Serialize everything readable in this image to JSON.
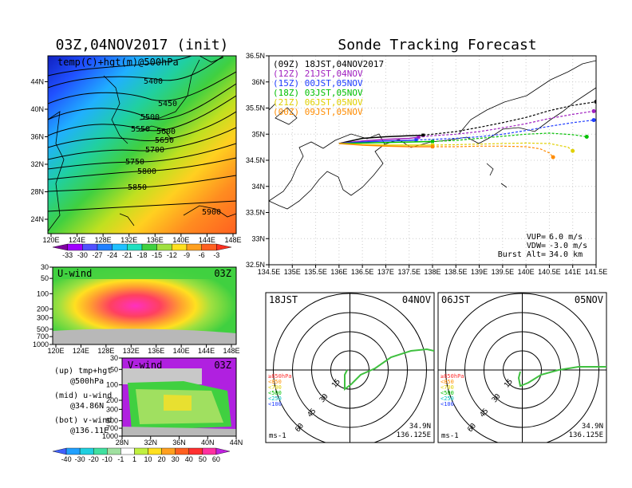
{
  "left_title": "03Z,04NOV2017 (init)",
  "right_title": "Sonde Tracking Forecast",
  "map_panel": {
    "label": "temp(C)+hgt(m)@500hPa",
    "x_ticks": [
      "120E",
      "124E",
      "128E",
      "132E",
      "136E",
      "140E",
      "144E",
      "148E"
    ],
    "y_ticks": [
      "24N",
      "28N",
      "32N",
      "36N",
      "40N",
      "44N"
    ],
    "contours": [
      "5400",
      "5450",
      "5500",
      "5550",
      "5600",
      "5650",
      "5700",
      "5750",
      "5800",
      "5850",
      "5900"
    ]
  },
  "temp_colorbar": [
    "-33",
    "-30",
    "-27",
    "-24",
    "-21",
    "-18",
    "-15",
    "-12",
    "-9",
    "-6",
    "-3"
  ],
  "u_panel": {
    "label": "U-wind",
    "time": "03Z",
    "y_ticks": [
      "30",
      "50",
      "100",
      "200",
      "300",
      "500",
      "700",
      "1000"
    ],
    "x_ticks": [
      "120E",
      "124E",
      "128E",
      "132E",
      "136E",
      "140E",
      "144E",
      "148E"
    ]
  },
  "v_panel": {
    "label": "V-wind",
    "time": "03Z",
    "y_ticks": [
      "30",
      "50",
      "100",
      "200",
      "300",
      "500",
      "700",
      "1000"
    ],
    "x_ticks": [
      "28N",
      "32N",
      "36N",
      "40N",
      "44N"
    ]
  },
  "descriptions": [
    {
      "a": "(up) tmp+hgt",
      "b": "@500hPa"
    },
    {
      "a": "(mid) u-wind",
      "b": "@34.86N"
    },
    {
      "a": "(bot) v-wind",
      "b": "@136.11E"
    }
  ],
  "wind_colorbar": [
    "-40",
    "-30",
    "-20",
    "-10",
    "-1",
    "1",
    "10",
    "20",
    "30",
    "40",
    "50",
    "60"
  ],
  "track_panel": {
    "x_ticks": [
      "134.5E",
      "135E",
      "135.5E",
      "136E",
      "136.5E",
      "137E",
      "137.5E",
      "138E",
      "138.5E",
      "139E",
      "139.5E",
      "140E",
      "140.5E",
      "141E",
      "141.5E"
    ],
    "y_ticks": [
      "32.5N",
      "33N",
      "33.5N",
      "34N",
      "34.5N",
      "35N",
      "35.5N",
      "36N",
      "36.5N"
    ],
    "legend": [
      {
        "text": "(09Z)  18JST,04NOV2017",
        "color": "#000000"
      },
      {
        "text": "(12Z)  21JST,04NOV",
        "color": "#a020c0"
      },
      {
        "text": "(15Z)  00JST,05NOV",
        "color": "#1e3cff"
      },
      {
        "text": "(18Z)  03JST,05NOV",
        "color": "#00c000"
      },
      {
        "text": "(21Z)  06JST,05NOV",
        "color": "#e0d000"
      },
      {
        "text": "(00Z)  09JST,05NOV",
        "color": "#ff8c00"
      }
    ],
    "params": [
      {
        "k": "VUP=",
        "v": "6.0 m/s"
      },
      {
        "k": "VDW=",
        "v": "-3.0 m/s"
      },
      {
        "k": "Burst Alt=",
        "v": "34.0 km"
      }
    ]
  },
  "hodographs": [
    {
      "time": "18JST",
      "date": "04NOV",
      "lat": "34.9N",
      "lon": "136.125E",
      "unit": "ms-1",
      "rings": [
        "15",
        "30",
        "45",
        "60"
      ],
      "levels": [
        {
          "t": "≥850hPa",
          "c": "#ff3030"
        },
        {
          "t": "<850",
          "c": "#ff8c00"
        },
        {
          "t": "<700",
          "c": "#e0d000"
        },
        {
          "t": "<500",
          "c": "#00c000"
        },
        {
          "t": "<250",
          "c": "#00c0c0"
        },
        {
          "t": "<100",
          "c": "#1e3cff"
        }
      ]
    },
    {
      "time": "06JST",
      "date": "05NOV",
      "lat": "34.9N",
      "lon": "136.125E",
      "unit": "ms-1",
      "rings": [
        "15",
        "30",
        "45",
        "60"
      ],
      "levels": [
        {
          "t": "≥850hPa",
          "c": "#ff3030"
        },
        {
          "t": "<850",
          "c": "#ff8c00"
        },
        {
          "t": "<700",
          "c": "#e0d000"
        },
        {
          "t": "<500",
          "c": "#00c000"
        },
        {
          "t": "<250",
          "c": "#00c0c0"
        },
        {
          "t": "<100",
          "c": "#1e3cff"
        }
      ]
    }
  ],
  "chart_data": {
    "type": "line",
    "title": "Sonde Tracking Forecast",
    "xlabel": "",
    "ylabel": "",
    "xlim": [
      134.5,
      141.5
    ],
    "ylim": [
      32.5,
      36.5
    ],
    "series": [
      {
        "name": "(09Z)  18JST,04NOV2017",
        "color": "#000000",
        "x": [
          136.0,
          136.5,
          137.0,
          137.5,
          137.8,
          138.0,
          138.5,
          139.0,
          139.5,
          140.0,
          140.5,
          141.0,
          141.5
        ],
        "y": [
          34.82,
          34.92,
          34.95,
          34.97,
          34.98,
          35.0,
          35.05,
          35.13,
          35.22,
          35.32,
          35.45,
          35.55,
          35.62
        ]
      },
      {
        "name": "(12Z)  21JST,04NOV",
        "color": "#a020c0",
        "x": [
          136.0,
          136.5,
          137.0,
          137.5,
          137.7,
          138.0,
          138.5,
          139.0,
          139.5,
          140.0,
          140.5,
          141.0,
          141.45
        ],
        "y": [
          34.82,
          34.87,
          34.9,
          34.92,
          34.94,
          34.97,
          35.0,
          35.05,
          35.12,
          35.2,
          35.3,
          35.38,
          35.44
        ]
      },
      {
        "name": "(15Z)  00JST,05NOV",
        "color": "#1e3cff",
        "x": [
          136.0,
          136.5,
          137.0,
          137.5,
          137.65,
          138.0,
          138.5,
          139.0,
          139.5,
          140.0,
          140.5,
          141.0,
          141.45
        ],
        "y": [
          34.82,
          34.85,
          34.87,
          34.88,
          34.89,
          34.9,
          34.92,
          34.95,
          35.0,
          35.07,
          35.15,
          35.22,
          35.27
        ]
      },
      {
        "name": "(18Z)  03JST,05NOV",
        "color": "#00c000",
        "x": [
          136.0,
          136.5,
          137.0,
          137.5,
          138.0,
          138.5,
          139.0,
          139.5,
          140.0,
          140.5,
          141.0,
          141.3
        ],
        "y": [
          34.82,
          34.83,
          34.84,
          34.85,
          34.86,
          34.88,
          34.92,
          34.96,
          35.0,
          35.02,
          34.99,
          34.95
        ]
      },
      {
        "name": "(21Z)  06JST,05NOV",
        "color": "#e0d000",
        "x": [
          136.0,
          136.5,
          137.0,
          137.5,
          138.0,
          138.5,
          139.0,
          139.5,
          140.0,
          140.5,
          140.9,
          141.0
        ],
        "y": [
          34.82,
          34.8,
          34.79,
          34.79,
          34.79,
          34.8,
          34.81,
          34.82,
          34.83,
          34.82,
          34.75,
          34.68
        ]
      },
      {
        "name": "(00Z)  09JST,05NOV",
        "color": "#ff8c00",
        "x": [
          136.0,
          136.5,
          137.0,
          137.5,
          138.0,
          138.5,
          139.0,
          139.5,
          140.0,
          140.3,
          140.5,
          140.58
        ],
        "y": [
          34.82,
          34.79,
          34.77,
          34.76,
          34.76,
          34.76,
          34.77,
          34.77,
          34.76,
          34.72,
          34.64,
          34.56
        ]
      }
    ]
  }
}
